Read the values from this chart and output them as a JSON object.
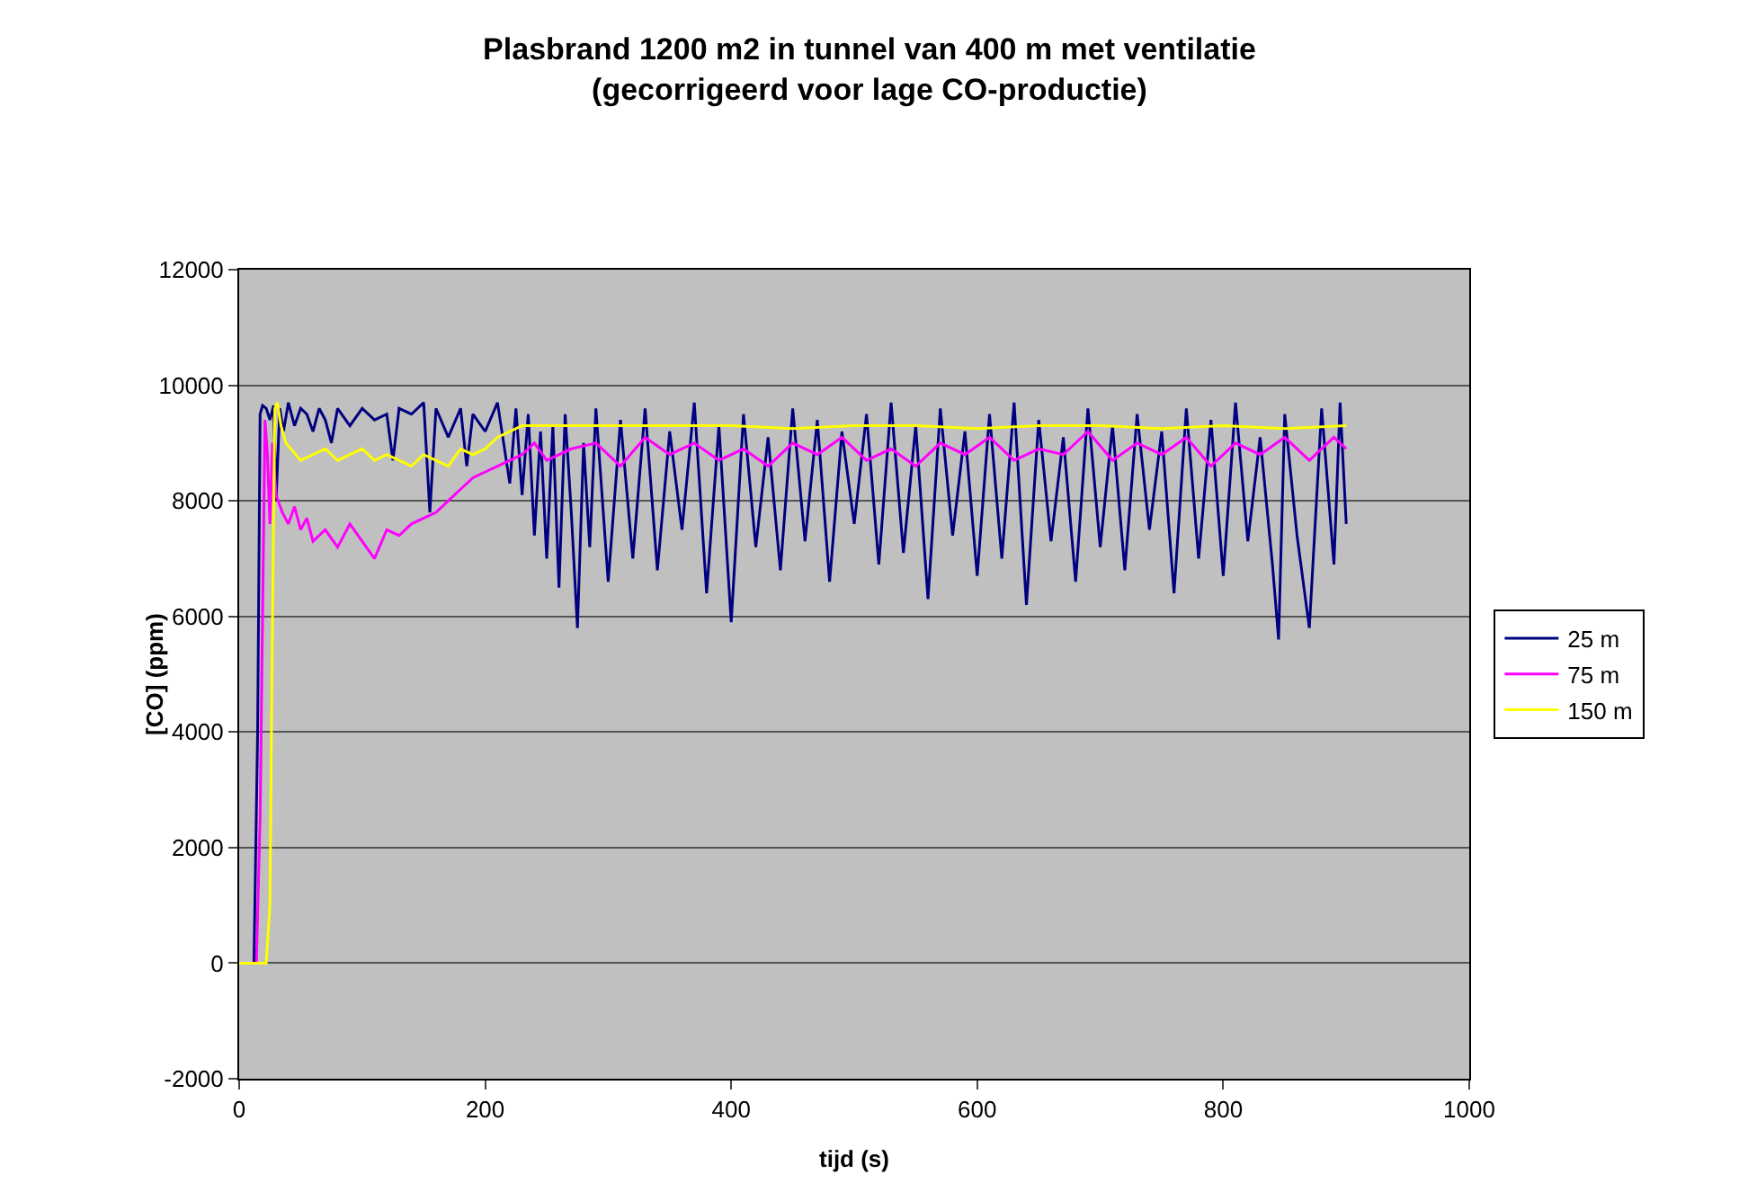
{
  "chart_data": {
    "type": "line",
    "title": "Plasbrand 1200 m2 in tunnel van 400 m met ventilatie\n(gecorrigeerd voor lage CO-productie)",
    "xlabel": "tijd (s)",
    "ylabel": "[CO] (ppm)",
    "xlim": [
      0,
      1000
    ],
    "xticks": [
      0,
      200,
      400,
      600,
      800,
      1000
    ],
    "ylim": [
      -2000,
      12000
    ],
    "yticks": [
      -2000,
      0,
      2000,
      4000,
      6000,
      8000,
      10000,
      12000
    ],
    "grid": "y",
    "legend": "right",
    "marker": "none",
    "line_style": "solid",
    "series": [
      {
        "name": "25 m",
        "color": "#000080",
        "x": [
          0,
          12,
          15,
          17,
          19,
          22,
          25,
          28,
          30,
          33,
          36,
          40,
          45,
          50,
          55,
          60,
          65,
          70,
          75,
          80,
          90,
          100,
          110,
          120,
          125,
          130,
          140,
          150,
          155,
          160,
          170,
          180,
          185,
          190,
          200,
          210,
          220,
          225,
          230,
          235,
          240,
          245,
          250,
          255,
          260,
          265,
          270,
          275,
          280,
          285,
          290,
          300,
          310,
          320,
          330,
          340,
          350,
          360,
          370,
          380,
          390,
          400,
          410,
          420,
          430,
          440,
          450,
          460,
          470,
          480,
          490,
          500,
          510,
          520,
          530,
          540,
          550,
          560,
          570,
          580,
          590,
          600,
          610,
          620,
          630,
          640,
          650,
          660,
          670,
          680,
          690,
          700,
          710,
          720,
          730,
          740,
          750,
          760,
          770,
          780,
          790,
          800,
          810,
          820,
          830,
          840,
          845,
          850,
          860,
          870,
          880,
          890,
          895,
          900
        ],
        "values": [
          0,
          0,
          4000,
          9500,
          9650,
          9600,
          9400,
          9650,
          8000,
          9600,
          9200,
          9700,
          9300,
          9600,
          9500,
          9200,
          9600,
          9400,
          9000,
          9600,
          9300,
          9600,
          9400,
          9500,
          8700,
          9600,
          9500,
          9700,
          7800,
          9600,
          9100,
          9600,
          8600,
          9500,
          9200,
          9700,
          8300,
          9600,
          8100,
          9500,
          7400,
          9200,
          7000,
          9300,
          6500,
          9500,
          7800,
          5800,
          9000,
          7200,
          9600,
          6600,
          9400,
          7000,
          9600,
          6800,
          9200,
          7500,
          9700,
          6400,
          9300,
          5900,
          9500,
          7200,
          9100,
          6800,
          9600,
          7300,
          9400,
          6600,
          9200,
          7600,
          9500,
          6900,
          9700,
          7100,
          9300,
          6300,
          9600,
          7400,
          9200,
          6700,
          9500,
          7000,
          9700,
          6200,
          9400,
          7300,
          9100,
          6600,
          9600,
          7200,
          9300,
          6800,
          9500,
          7500,
          9200,
          6400,
          9600,
          7000,
          9400,
          6700,
          9700,
          7300,
          9100,
          6900,
          5600,
          9500,
          7400,
          5800,
          9600,
          6900,
          9700,
          7600
        ]
      },
      {
        "name": "75 m",
        "color": "#ff00ff",
        "x": [
          0,
          14,
          17,
          19,
          21,
          23,
          25,
          27,
          30,
          35,
          40,
          45,
          50,
          55,
          60,
          70,
          80,
          90,
          100,
          110,
          120,
          130,
          140,
          150,
          160,
          170,
          180,
          190,
          200,
          210,
          220,
          230,
          240,
          250,
          270,
          290,
          310,
          330,
          350,
          370,
          390,
          410,
          430,
          450,
          470,
          490,
          510,
          530,
          550,
          570,
          590,
          610,
          630,
          650,
          670,
          690,
          710,
          730,
          750,
          770,
          790,
          810,
          830,
          850,
          870,
          890,
          900
        ],
        "values": [
          0,
          0,
          2500,
          6000,
          9400,
          8800,
          7600,
          9000,
          8100,
          7800,
          7600,
          7900,
          7500,
          7700,
          7300,
          7500,
          7200,
          7600,
          7300,
          7000,
          7500,
          7400,
          7600,
          7700,
          7800,
          8000,
          8200,
          8400,
          8500,
          8600,
          8700,
          8800,
          9000,
          8700,
          8900,
          9000,
          8600,
          9100,
          8800,
          9000,
          8700,
          8900,
          8600,
          9000,
          8800,
          9100,
          8700,
          8900,
          8600,
          9000,
          8800,
          9100,
          8700,
          8900,
          8800,
          9200,
          8700,
          9000,
          8800,
          9100,
          8600,
          9000,
          8800,
          9100,
          8700,
          9100,
          8900
        ]
      },
      {
        "name": "150 m",
        "color": "#ffff00",
        "x": [
          0,
          22,
          25,
          27,
          29,
          31,
          34,
          38,
          42,
          46,
          50,
          60,
          70,
          80,
          90,
          100,
          110,
          120,
          130,
          140,
          150,
          160,
          170,
          180,
          190,
          200,
          210,
          220,
          230,
          250,
          300,
          350,
          400,
          450,
          500,
          550,
          600,
          650,
          700,
          750,
          800,
          850,
          900
        ],
        "values": [
          0,
          0,
          1000,
          5800,
          9600,
          9700,
          9300,
          9000,
          8900,
          8800,
          8700,
          8800,
          8900,
          8700,
          8800,
          8900,
          8700,
          8800,
          8700,
          8600,
          8800,
          8700,
          8600,
          8900,
          8800,
          8900,
          9100,
          9200,
          9300,
          9300,
          9300,
          9300,
          9300,
          9250,
          9300,
          9300,
          9250,
          9300,
          9300,
          9250,
          9300,
          9250,
          9300
        ]
      }
    ]
  }
}
